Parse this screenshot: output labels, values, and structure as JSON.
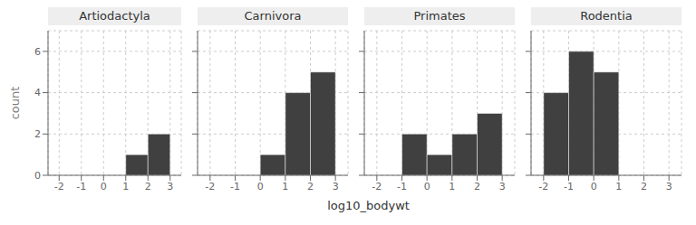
{
  "chart_data": [
    {
      "type": "histogram",
      "title": "Artiodactyla",
      "bins": [
        1,
        2,
        3
      ],
      "values": [
        1,
        2
      ],
      "color": "#404040",
      "ylabel": "count",
      "xlabel": "log10_bodywt",
      "xlim": [
        -2.5,
        3.5
      ],
      "xticks": [
        -2,
        -1,
        0,
        1,
        2,
        3
      ],
      "ylim": [
        0,
        7
      ],
      "yticks": [
        0,
        2,
        4,
        6
      ],
      "grid": true
    },
    {
      "type": "histogram",
      "title": "Carnivora",
      "bins": [
        0,
        1,
        2,
        3
      ],
      "values": [
        1,
        4,
        5
      ],
      "color": "#404040",
      "xlim": [
        -2.5,
        3.5
      ],
      "xticks": [
        -2,
        -1,
        0,
        1,
        2,
        3
      ],
      "ylim": [
        0,
        7
      ],
      "yticks": [
        0,
        2,
        4,
        6
      ],
      "grid": true,
      "tick_labels": "x"
    },
    {
      "type": "histogram",
      "title": "Primates",
      "bins": [
        -1,
        0,
        1,
        2,
        3
      ],
      "values": [
        2,
        1,
        2,
        3
      ],
      "color": "#404040",
      "xlim": [
        -2.5,
        3.5
      ],
      "xticks": [
        -2,
        -1,
        0,
        1,
        2,
        3
      ],
      "ylim": [
        0,
        7
      ],
      "yticks": [
        0,
        2,
        4,
        6
      ],
      "grid": true,
      "tick_labels": "x"
    },
    {
      "type": "histogram",
      "title": "Rodentia",
      "bins": [
        -2,
        -1,
        0,
        1
      ],
      "values": [
        4,
        6,
        5
      ],
      "color": "#404040",
      "xlim": [
        -2.5,
        3.5
      ],
      "xticks": [
        -2,
        -1,
        0,
        1,
        2,
        3
      ],
      "ylim": [
        0,
        7
      ],
      "yticks": [
        0,
        2,
        4,
        6
      ],
      "grid": true,
      "tick_labels": "x"
    }
  ]
}
